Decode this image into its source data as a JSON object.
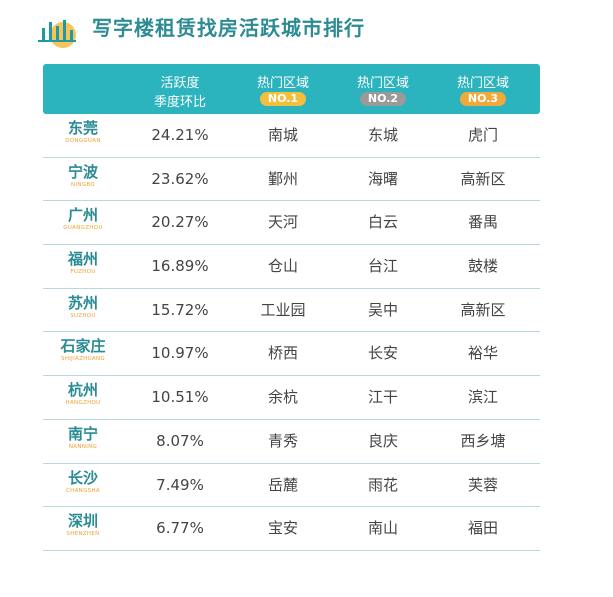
{
  "title": "写字楼租赁找房活跃城市排行",
  "logo_icon": "bar-chart-logo-icon",
  "colors": {
    "teal": "#2bb3be",
    "title": "#2d8b93",
    "gold": "#f4bf3a",
    "silver": "#9a9a9a",
    "bronze": "#f2a93b",
    "city_en": "#f0a030"
  },
  "header": {
    "activity_l1": "活跃度",
    "activity_l2": "季度环比",
    "hot1_l1": "热门区域",
    "hot1_badge": "NO.1",
    "hot2_l1": "热门区域",
    "hot2_badge": "NO.2",
    "hot3_l1": "热门区域",
    "hot3_badge": "NO.3"
  },
  "rows": [
    {
      "cn": "东莞",
      "en": "DONGGUAN",
      "pct": "24.21%",
      "a1": "南城",
      "a2": "东城",
      "a3": "虎门"
    },
    {
      "cn": "宁波",
      "en": "NINGBO",
      "pct": "23.62%",
      "a1": "鄞州",
      "a2": "海曙",
      "a3": "高新区"
    },
    {
      "cn": "广州",
      "en": "GUANGZHOU",
      "pct": "20.27%",
      "a1": "天河",
      "a2": "白云",
      "a3": "番禺"
    },
    {
      "cn": "福州",
      "en": "FUZHOU",
      "pct": "16.89%",
      "a1": "仓山",
      "a2": "台江",
      "a3": "鼓楼"
    },
    {
      "cn": "苏州",
      "en": "SUZHOU",
      "pct": "15.72%",
      "a1": "工业园",
      "a2": "吴中",
      "a3": "高新区"
    },
    {
      "cn": "石家庄",
      "en": "SHIJIAZHUANG",
      "pct": "10.97%",
      "a1": "桥西",
      "a2": "长安",
      "a3": "裕华"
    },
    {
      "cn": "杭州",
      "en": "HANGZHOU",
      "pct": "10.51%",
      "a1": "余杭",
      "a2": "江干",
      "a3": "滨江"
    },
    {
      "cn": "南宁",
      "en": "NANNING",
      "pct": "8.07%",
      "a1": "青秀",
      "a2": "良庆",
      "a3": "西乡塘"
    },
    {
      "cn": "长沙",
      "en": "CHANGSHA",
      "pct": "7.49%",
      "a1": "岳麓",
      "a2": "雨花",
      "a3": "芙蓉"
    },
    {
      "cn": "深圳",
      "en": "SHENZHEN",
      "pct": "6.77%",
      "a1": "宝安",
      "a2": "南山",
      "a3": "福田"
    }
  ]
}
